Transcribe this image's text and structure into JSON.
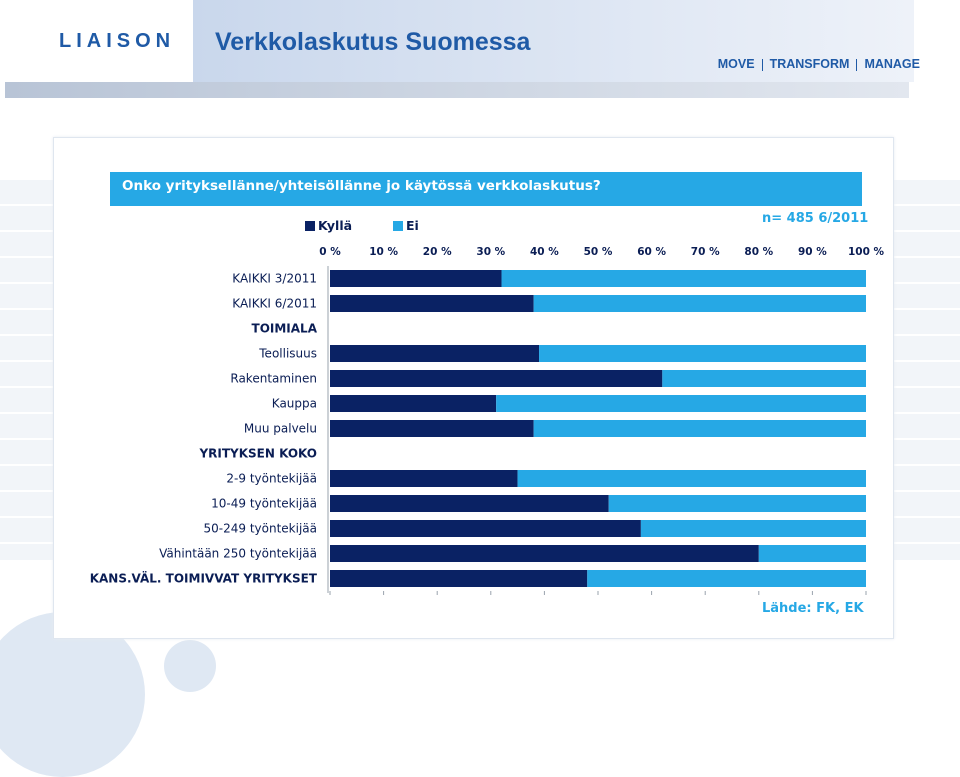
{
  "header": {
    "logo_text": "LIAISON",
    "title": "Verkkolaskutus Suomessa",
    "tagline": [
      "MOVE",
      "TRANSFORM",
      "MANAGE"
    ]
  },
  "colors": {
    "brand_blue": "#1f5aa6",
    "kylla_dark": "#0a2264",
    "ei_light": "#26a8e5",
    "question_bg": "#26a8e5"
  },
  "chart_data": {
    "type": "bar",
    "orientation": "horizontal-stacked-100",
    "title": "Onko yrityksellänne/yhteisöllänne jo käytössä verkkolaskutus?",
    "categories": [
      "KAIKKI 3/2011",
      "KAIKKI 6/2011",
      "TOIMIALA",
      "Teollisuus",
      "Rakentaminen",
      "Kauppa",
      "Muu palvelu",
      "YRITYKSEN KOKO",
      "2-9 työntekijää",
      "10-49 työntekijää",
      "50-249 työntekijää",
      "Vähintään 250 työntekijää",
      "KANS.VÄL. TOIMIVVAT YRITYKSET"
    ],
    "category_bold": [
      false,
      false,
      true,
      false,
      false,
      false,
      false,
      true,
      false,
      false,
      false,
      false,
      true
    ],
    "series": [
      {
        "name": "Kyllä",
        "color": "#0a2264",
        "values": [
          32,
          38,
          null,
          39,
          62,
          31,
          38,
          null,
          35,
          52,
          58,
          80,
          48
        ]
      },
      {
        "name": "Ei",
        "color": "#26a8e5",
        "values": [
          68,
          62,
          null,
          61,
          38,
          69,
          62,
          null,
          65,
          48,
          42,
          20,
          52
        ]
      }
    ],
    "x_ticks": [
      "0 %",
      "10 %",
      "20 %",
      "30 %",
      "40 %",
      "50 %",
      "60 %",
      "70 %",
      "80 %",
      "90 %",
      "100 %"
    ],
    "xlim": [
      0,
      100
    ],
    "x_axis_position": "top",
    "legend_position": "top-left",
    "grid": false,
    "sample_note": "n= 485  6/2011",
    "source_note": "Lähde: FK, EK"
  }
}
